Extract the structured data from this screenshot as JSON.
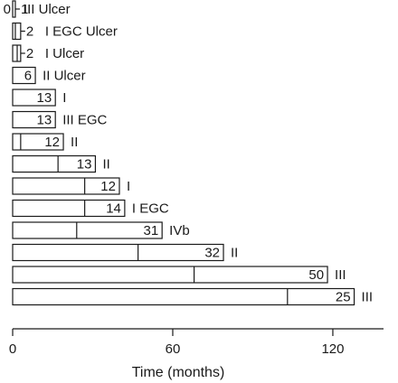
{
  "chart_data": {
    "type": "bar",
    "orientation": "horizontal",
    "xlabel": "Time (months)",
    "xlim": [
      0,
      139
    ],
    "xticks": [
      0,
      60,
      120
    ],
    "bars": [
      {
        "first": 0,
        "total": 1,
        "value_label": "1",
        "side_label": "III Ulcer"
      },
      {
        "first": 1,
        "total": 3,
        "value_label": "2",
        "side_label": "I EGC Ulcer"
      },
      {
        "first": 1.7,
        "total": 3,
        "value_label": "2",
        "side_label": "I Ulcer"
      },
      {
        "first": 0,
        "total": 8.5,
        "value_label": "6",
        "side_label": "II Ulcer"
      },
      {
        "first": 0,
        "total": 16,
        "value_label": "13",
        "side_label": "I"
      },
      {
        "first": 0,
        "total": 16,
        "value_label": "13",
        "side_label": "III EGC"
      },
      {
        "first": 3,
        "total": 19,
        "value_label": "12",
        "side_label": "II"
      },
      {
        "first": 17,
        "total": 31,
        "value_label": "13",
        "side_label": "II"
      },
      {
        "first": 27,
        "total": 40,
        "value_label": "12",
        "side_label": "I"
      },
      {
        "first": 27,
        "total": 42,
        "value_label": "14",
        "side_label": "I EGC"
      },
      {
        "first": 24,
        "total": 56,
        "value_label": "31",
        "side_label": "IVb"
      },
      {
        "first": 47,
        "total": 79,
        "value_label": "32",
        "side_label": "II"
      },
      {
        "first": 68,
        "total": 118,
        "value_label": "50",
        "side_label": "III"
      },
      {
        "first": 103,
        "total": 128,
        "value_label": "25",
        "side_label": "III"
      }
    ]
  }
}
